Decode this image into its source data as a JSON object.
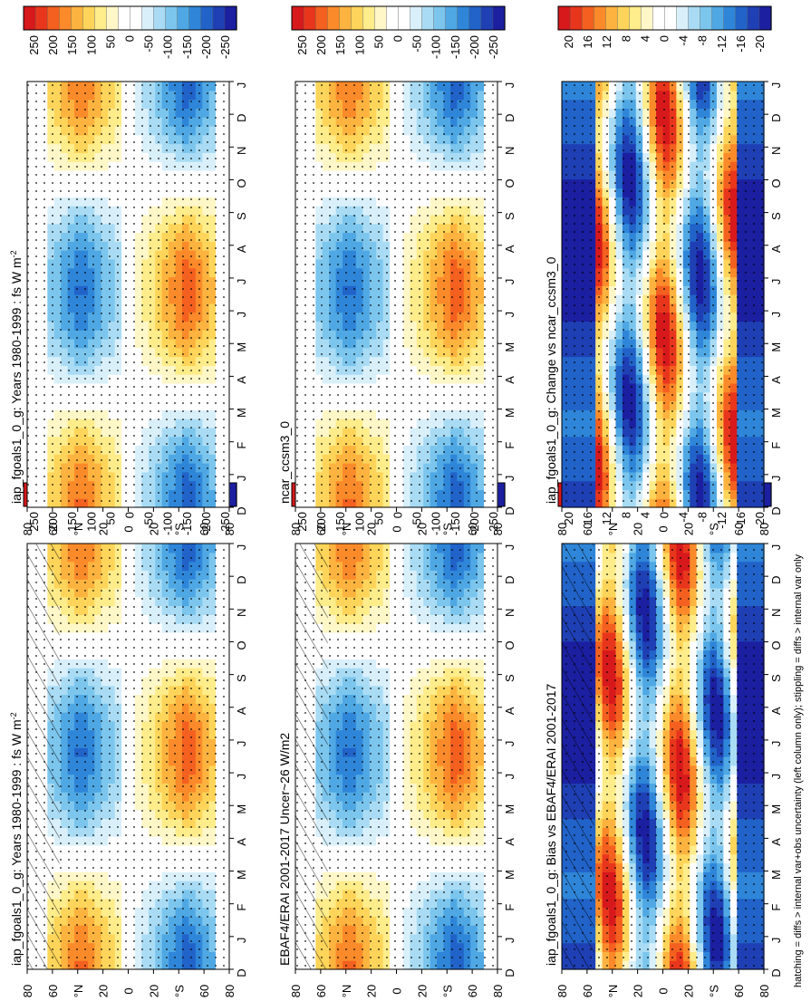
{
  "footnote": "hatching = diffs > internal var+obs uncertainty (left column only); stippling = diffs > internal var only",
  "chart_data": [
    {
      "id": "A",
      "type": "heatmap",
      "title": "iap_fgoals1_0_g: Years 1980-1999 : fs W m",
      "title_sup": "-2",
      "xlabels": [
        "D",
        "J",
        "F",
        "M",
        "A",
        "M",
        "J",
        "J",
        "A",
        "S",
        "O",
        "N",
        "D",
        "J"
      ],
      "ylabels": [
        "80",
        "60",
        "°N",
        "20",
        "0",
        "20",
        "°S",
        "60",
        "80"
      ],
      "colorbar": [
        "250",
        "200",
        "150",
        "100",
        "50",
        "0",
        "-50",
        "-100",
        "-150",
        "-200",
        "-250"
      ],
      "variant": "clim",
      "hatch": true
    },
    {
      "id": "B",
      "type": "heatmap",
      "title": "EBAF4/ERAI 2001-2017 Uncer~26 W/m2",
      "title_sup": "",
      "xlabels": [
        "D",
        "J",
        "F",
        "M",
        "A",
        "M",
        "J",
        "J",
        "A",
        "S",
        "O",
        "N",
        "D",
        "J"
      ],
      "ylabels": [
        "80",
        "60",
        "°N",
        "20",
        "0",
        "20",
        "°S",
        "60",
        "80"
      ],
      "colorbar": [
        "250",
        "200",
        "150",
        "100",
        "50",
        "0",
        "-50",
        "-100",
        "-150",
        "-200",
        "-250"
      ],
      "variant": "clim",
      "hatch": true
    },
    {
      "id": "C",
      "type": "heatmap",
      "title": "iap_fgoals1_0_g: Bias vs EBAF4/ERAI 2001-2017",
      "title_sup": "",
      "xlabels": [
        "D",
        "J",
        "F",
        "M",
        "A",
        "M",
        "J",
        "J",
        "A",
        "S",
        "O",
        "N",
        "D",
        "J"
      ],
      "ylabels": [
        "80",
        "60",
        "°N",
        "20",
        "0",
        "20",
        "°S",
        "60",
        "80"
      ],
      "colorbar": [
        "20",
        "16",
        "12",
        "8",
        "4",
        "0",
        "-4",
        "-8",
        "-12",
        "-16",
        "-20"
      ],
      "variant": "diff",
      "hatch": true
    },
    {
      "id": "D",
      "type": "heatmap",
      "title": "iap_fgoals1_0_g: Years 1980-1999 : fs W m",
      "title_sup": "-2",
      "xlabels": [
        "D",
        "J",
        "F",
        "M",
        "A",
        "M",
        "J",
        "J",
        "A",
        "S",
        "O",
        "N",
        "D",
        "J"
      ],
      "ylabels": [
        "80",
        "60",
        "°N",
        "20",
        "0",
        "20",
        "°S",
        "60",
        "80"
      ],
      "colorbar": [
        "250",
        "200",
        "150",
        "100",
        "50",
        "0",
        "-50",
        "-100",
        "-150",
        "-200",
        "-250"
      ],
      "variant": "clim",
      "hatch": false
    },
    {
      "id": "E",
      "type": "heatmap",
      "title": "ncar_ccsm3_0",
      "title_sup": "",
      "xlabels": [
        "D",
        "J",
        "F",
        "M",
        "A",
        "M",
        "J",
        "J",
        "A",
        "S",
        "O",
        "N",
        "D",
        "J"
      ],
      "ylabels": [
        "80",
        "60",
        "°N",
        "20",
        "0",
        "20",
        "°S",
        "60",
        "80"
      ],
      "colorbar": [
        "250",
        "200",
        "150",
        "100",
        "50",
        "0",
        "-50",
        "-100",
        "-150",
        "-200",
        "-250"
      ],
      "variant": "clim",
      "hatch": false
    },
    {
      "id": "F",
      "type": "heatmap",
      "title": "iap_fgoals1_0_g: Change vs ncar_ccsm3_0",
      "title_sup": "",
      "xlabels": [
        "D",
        "J",
        "F",
        "M",
        "A",
        "M",
        "J",
        "J",
        "A",
        "S",
        "O",
        "N",
        "D",
        "J"
      ],
      "ylabels": [
        "80",
        "60",
        "°N",
        "20",
        "0",
        "20",
        "°S",
        "60",
        "80"
      ],
      "colorbar": [
        "20",
        "16",
        "12",
        "8",
        "4",
        "0",
        "-4",
        "-8",
        "-12",
        "-16",
        "-20"
      ],
      "variant": "diff2",
      "hatch": false
    }
  ],
  "colors": {
    "scale": [
      "#d7191c",
      "#e8361c",
      "#f4601f",
      "#fb8a2a",
      "#fdb33f",
      "#fed55a",
      "#ffec8b",
      "#fff7c8",
      "#ffffff",
      "#ffffff",
      "#d9f0fb",
      "#a9dcf4",
      "#7cc6ee",
      "#4fa8e4",
      "#2f86d9",
      "#2163c9",
      "#1f3fb4",
      "#1b1fa0"
    ]
  }
}
